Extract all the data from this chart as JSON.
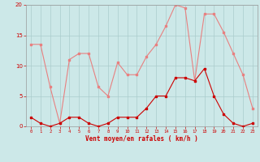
{
  "x": [
    0,
    1,
    2,
    3,
    4,
    5,
    6,
    7,
    8,
    9,
    10,
    11,
    12,
    13,
    14,
    15,
    16,
    17,
    18,
    19,
    20,
    21,
    22,
    23
  ],
  "rafales": [
    13.5,
    13.5,
    6.5,
    0.5,
    11,
    12,
    12,
    6.5,
    5,
    10.5,
    8.5,
    8.5,
    11.5,
    13.5,
    16.5,
    20,
    19.5,
    7.5,
    18.5,
    18.5,
    15.5,
    12,
    8.5,
    3
  ],
  "moyen": [
    1.5,
    0.5,
    0,
    0.5,
    1.5,
    1.5,
    0.5,
    0,
    0.5,
    1.5,
    1.5,
    1.5,
    3,
    5,
    5,
    8,
    8,
    7.5,
    9.5,
    5,
    2,
    0.5,
    0,
    0.5
  ],
  "bg_color": "#cce8e8",
  "line_color_rafales": "#e88080",
  "line_color_moyen": "#cc0000",
  "grid_color": "#aacccc",
  "xlabel": "Vent moyen/en rafales ( km/h )",
  "xlabel_color": "#cc0000",
  "tick_color": "#cc0000",
  "ylim": [
    0,
    20
  ],
  "yticks": [
    0,
    5,
    10,
    15,
    20
  ],
  "xlim_min": -0.5,
  "xlim_max": 23.5
}
